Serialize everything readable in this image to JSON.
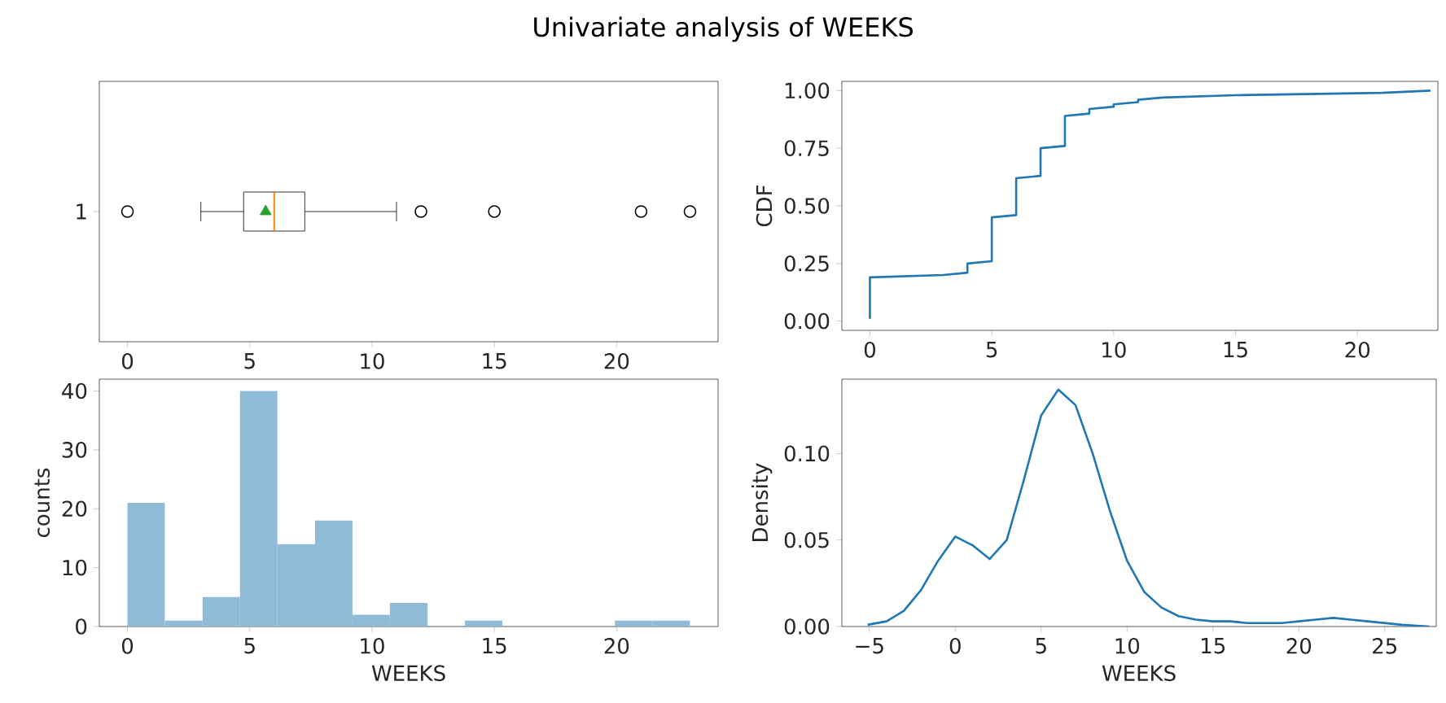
{
  "chart_data": [
    {
      "type": "box",
      "title": "Univariate analysis of WEEKS",
      "orientation": "horizontal",
      "categories": [
        "1"
      ],
      "boxes": [
        {
          "low": 3,
          "q1": 4.75,
          "median": 6,
          "q3": 7.25,
          "high": 11,
          "mean": 5.65,
          "outliers": [
            0,
            12,
            15,
            21,
            23
          ]
        }
      ],
      "xlim": [
        -1.15,
        24.15
      ],
      "xticks": [
        0,
        5,
        10,
        15,
        20
      ]
    },
    {
      "type": "line",
      "ylabel": "CDF",
      "color": "#1f77b4",
      "x": [
        0,
        0,
        3,
        4,
        4,
        5,
        5,
        6,
        6,
        7,
        7,
        8,
        8,
        9,
        9,
        10,
        10,
        11,
        11,
        12,
        15,
        21,
        23
      ],
      "values": [
        0.01,
        0.19,
        0.2,
        0.21,
        0.25,
        0.26,
        0.45,
        0.46,
        0.62,
        0.63,
        0.75,
        0.76,
        0.89,
        0.9,
        0.92,
        0.93,
        0.94,
        0.95,
        0.96,
        0.97,
        0.98,
        0.99,
        1.0
      ],
      "xlim": [
        -1.15,
        23.3
      ],
      "ylim": [
        -0.04,
        1.04
      ],
      "xticks": [
        0,
        5,
        10,
        15,
        20
      ],
      "yticks": [
        {
          "value": 0,
          "label": "0.00"
        },
        {
          "value": 0.25,
          "label": "0.25"
        },
        {
          "value": 0.5,
          "label": "0.50"
        },
        {
          "value": 0.75,
          "label": "0.75"
        },
        {
          "value": 1,
          "label": "1.00"
        }
      ]
    },
    {
      "type": "histogram",
      "xlabel": "WEEKS",
      "ylabel": "counts",
      "color": "#8fbbd9",
      "bins": [
        0,
        1.53,
        3.07,
        4.6,
        6.13,
        7.67,
        9.2,
        10.73,
        12.27,
        13.8,
        15.33,
        16.87,
        18.4,
        19.93,
        21.47,
        23
      ],
      "values": [
        21,
        1,
        5,
        40,
        14,
        18,
        2,
        4,
        0,
        1,
        0,
        0,
        0,
        1,
        1
      ],
      "xlim": [
        -1.15,
        24.15
      ],
      "ylim": [
        0,
        42
      ],
      "xticks": [
        0,
        5,
        10,
        15,
        20
      ],
      "yticks": [
        0,
        10,
        20,
        30,
        40
      ]
    },
    {
      "type": "line",
      "xlabel": "WEEKS",
      "ylabel": "Density",
      "color": "#1f77b4",
      "x": [
        -5.1,
        -4,
        -3,
        -2,
        -1,
        0,
        1,
        2,
        3,
        4,
        5,
        6,
        7,
        8,
        9,
        10,
        11,
        12,
        13,
        14,
        15,
        16,
        17,
        18,
        19,
        20,
        21,
        22,
        23,
        24,
        25,
        26,
        27.6
      ],
      "values": [
        0.001,
        0.003,
        0.009,
        0.021,
        0.038,
        0.052,
        0.047,
        0.039,
        0.05,
        0.085,
        0.122,
        0.137,
        0.128,
        0.1,
        0.067,
        0.038,
        0.02,
        0.011,
        0.006,
        0.004,
        0.003,
        0.003,
        0.002,
        0.002,
        0.002,
        0.003,
        0.004,
        0.005,
        0.004,
        0.003,
        0.002,
        0.001,
        0.0
      ],
      "xlim": [
        -6.6,
        28.0
      ],
      "ylim": [
        0,
        0.143
      ],
      "xticks": [
        {
          "value": -5,
          "label": "−5"
        },
        0,
        5,
        10,
        15,
        20,
        25
      ],
      "yticks": [
        {
          "value": 0,
          "label": "0.00"
        },
        {
          "value": 0.05,
          "label": "0.05"
        },
        {
          "value": 0.1,
          "label": "0.10"
        }
      ]
    }
  ]
}
